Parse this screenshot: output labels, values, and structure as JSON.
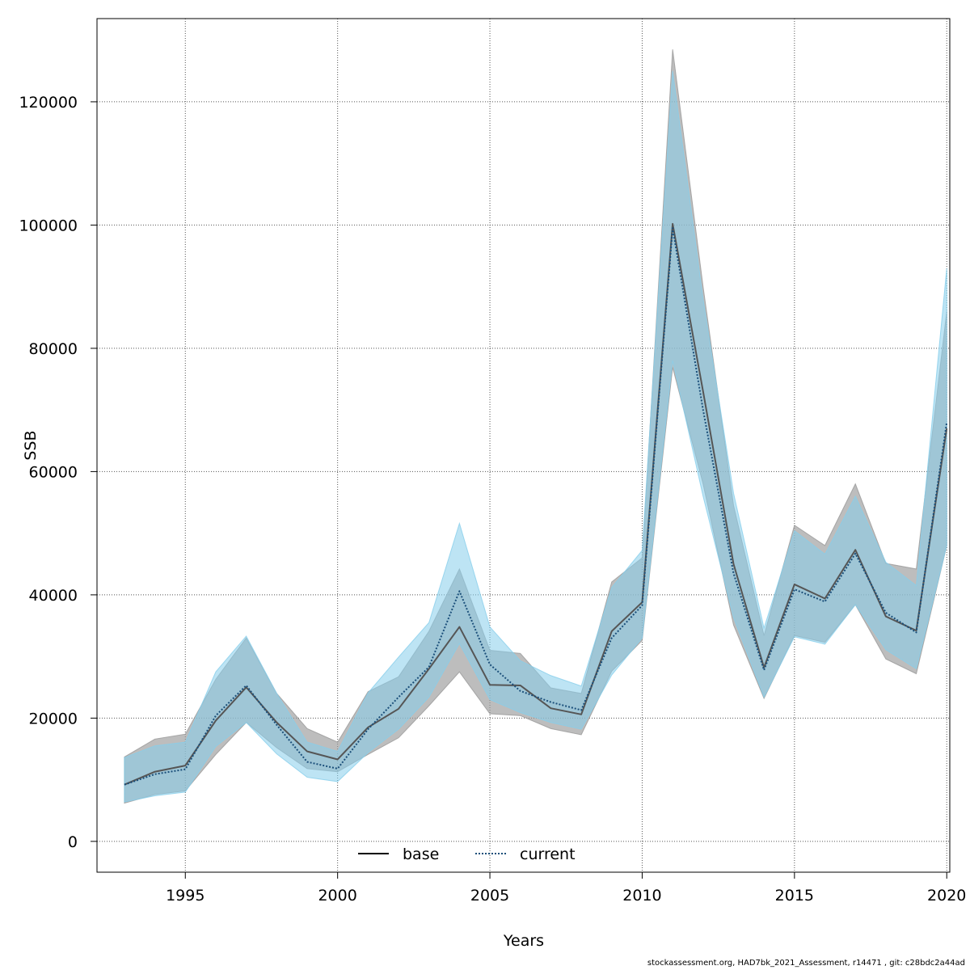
{
  "chart_data": {
    "type": "line",
    "xlabel": "Years",
    "ylabel": "SSB",
    "xlim": [
      1992.1,
      2020.1
    ],
    "ylim": [
      -5000,
      133500
    ],
    "grid": true,
    "legend_position": "bottom-center",
    "x_ticks": [
      "1995",
      "2000",
      "2005",
      "2010",
      "2015",
      "2020"
    ],
    "y_ticks": [
      "0",
      "20000",
      "40000",
      "60000",
      "80000",
      "100000",
      "120000"
    ],
    "x": [
      1993,
      1994,
      1995,
      1996,
      1997,
      1998,
      1999,
      2000,
      2001,
      2002,
      2003,
      2004,
      2005,
      2006,
      2007,
      2008,
      2009,
      2010,
      2011,
      2012,
      2013,
      2014,
      2015,
      2016,
      2017,
      2018,
      2019,
      2020
    ],
    "series": [
      {
        "name": "base",
        "line_style": "solid",
        "line_color": "#555555",
        "band_color": "#999999",
        "values": [
          9200,
          11300,
          12300,
          19600,
          25000,
          19300,
          14600,
          13300,
          18500,
          21500,
          28000,
          34800,
          25400,
          25300,
          21600,
          20600,
          34100,
          38800,
          100200,
          73000,
          45000,
          28200,
          41700,
          39400,
          47300,
          36500,
          34200,
          67000
        ],
        "lower": [
          6200,
          7600,
          8200,
          14100,
          19300,
          15200,
          11800,
          11300,
          14100,
          16800,
          22000,
          27500,
          20700,
          20400,
          18300,
          17300,
          27600,
          32600,
          76900,
          58000,
          35100,
          23200,
          33400,
          32300,
          38400,
          29600,
          27200,
          48000
        ],
        "upper": [
          13700,
          16600,
          17400,
          26300,
          33000,
          24000,
          18300,
          16100,
          24300,
          26700,
          34100,
          44200,
          31000,
          30500,
          24900,
          24000,
          42100,
          46000,
          128500,
          90000,
          54500,
          33400,
          51300,
          48000,
          58000,
          45100,
          44200,
          86000
        ]
      },
      {
        "name": "current",
        "line_style": "dotted",
        "line_color": "#1b4f7a",
        "band_color": "#87ceeb",
        "values": [
          9200,
          10900,
          11700,
          20400,
          25300,
          18900,
          12900,
          11800,
          18200,
          23400,
          28300,
          40600,
          28700,
          24400,
          22600,
          21300,
          33000,
          38300,
          99500,
          70000,
          43500,
          27800,
          40900,
          38900,
          46700,
          37100,
          33900,
          68000
        ],
        "lower": [
          6400,
          7400,
          8000,
          15400,
          19300,
          14200,
          10400,
          9700,
          14400,
          18200,
          23400,
          32100,
          23000,
          20900,
          19300,
          18200,
          27000,
          33000,
          78000,
          56000,
          36300,
          23400,
          33200,
          32000,
          38400,
          31100,
          28000,
          48000
        ],
        "upper": [
          13600,
          15500,
          16100,
          27500,
          33300,
          24000,
          16100,
          14600,
          24100,
          29900,
          35500,
          51600,
          34800,
          29300,
          26900,
          25200,
          41200,
          47200,
          125000,
          88000,
          56500,
          34600,
          50400,
          46600,
          56000,
          45300,
          41500,
          93000
        ]
      }
    ]
  },
  "footer_text": "stockassessment.org, HAD7bk_2021_Assessment, r14471 , git: c28bdc2a44ad"
}
